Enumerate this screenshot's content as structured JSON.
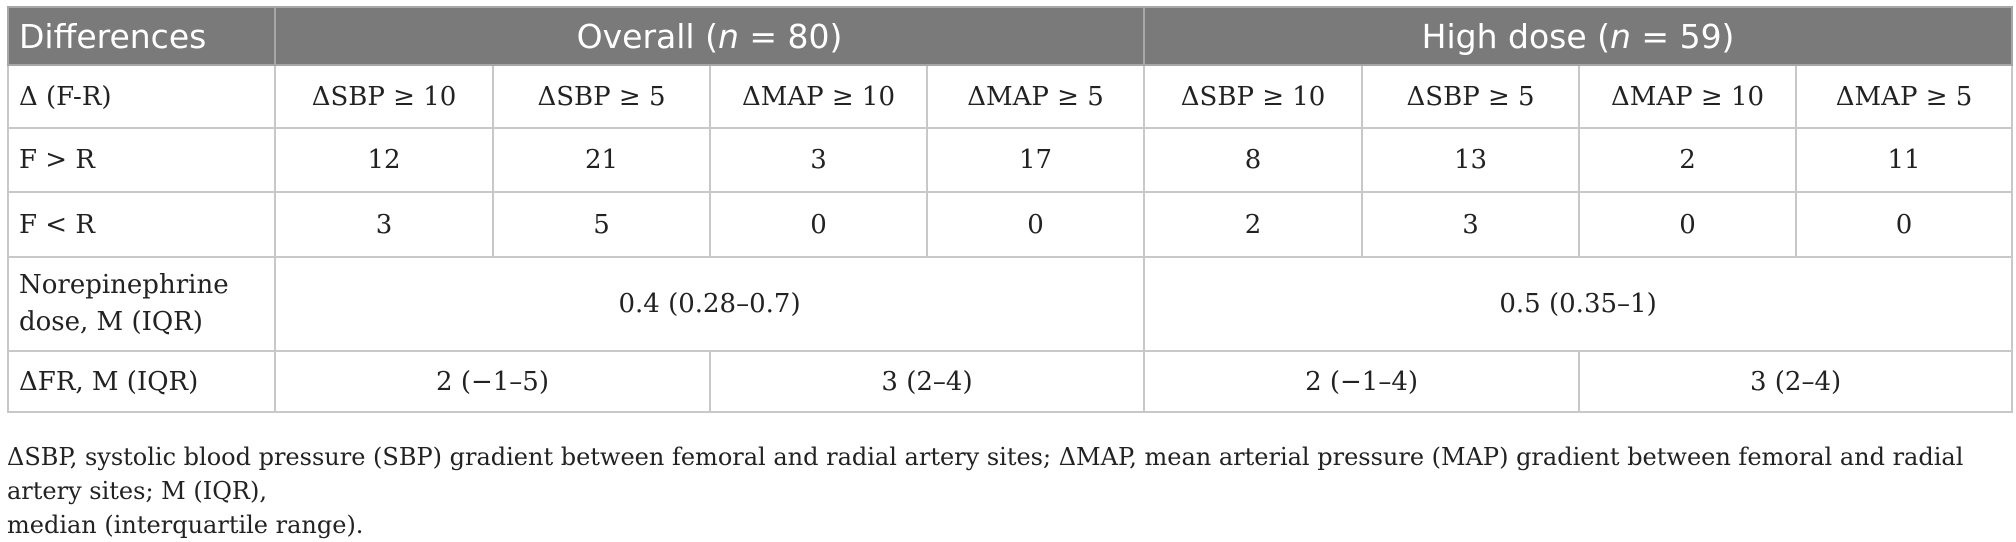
{
  "table": {
    "header": {
      "differences": "Differences",
      "overall_prefix": "Overall (",
      "overall_n": "n",
      "overall_suffix": " = 80)",
      "high_prefix": "High dose (",
      "high_n": "n",
      "high_suffix": " = 59)"
    },
    "delta_row": {
      "label": "Δ (F-R)",
      "cols": [
        "ΔSBP ≥ 10",
        "ΔSBP ≥ 5",
        "ΔMAP ≥ 10",
        "ΔMAP ≥ 5",
        "ΔSBP ≥ 10",
        "ΔSBP ≥ 5",
        "ΔMAP ≥ 10",
        "ΔMAP ≥ 5"
      ]
    },
    "f_gt_r": {
      "label": "F > R",
      "values": [
        "12",
        "21",
        "3",
        "17",
        "8",
        "13",
        "2",
        "11"
      ]
    },
    "f_lt_r": {
      "label": "F < R",
      "values": [
        "3",
        "5",
        "0",
        "0",
        "2",
        "3",
        "0",
        "0"
      ]
    },
    "norepinephrine": {
      "label_line1": "Norepinephrine",
      "label_line2": "dose, M (IQR)",
      "overall": "0.4 (0.28–0.7)",
      "high": "0.5 (0.35–1)"
    },
    "dfr": {
      "label": "ΔFR, M (IQR)",
      "overall_sbp": "2 (−1–5)",
      "overall_map": "3 (2–4)",
      "high_sbp": "2 (−1–4)",
      "high_map": "3 (2–4)"
    }
  },
  "footnote": {
    "line1": "ΔSBP, systolic blood pressure (SBP) gradient between femoral and radial artery sites; ΔMAP, mean arterial pressure (MAP) gradient between femoral and radial artery sites; M (IQR),",
    "line2": "median (interquartile range)."
  }
}
